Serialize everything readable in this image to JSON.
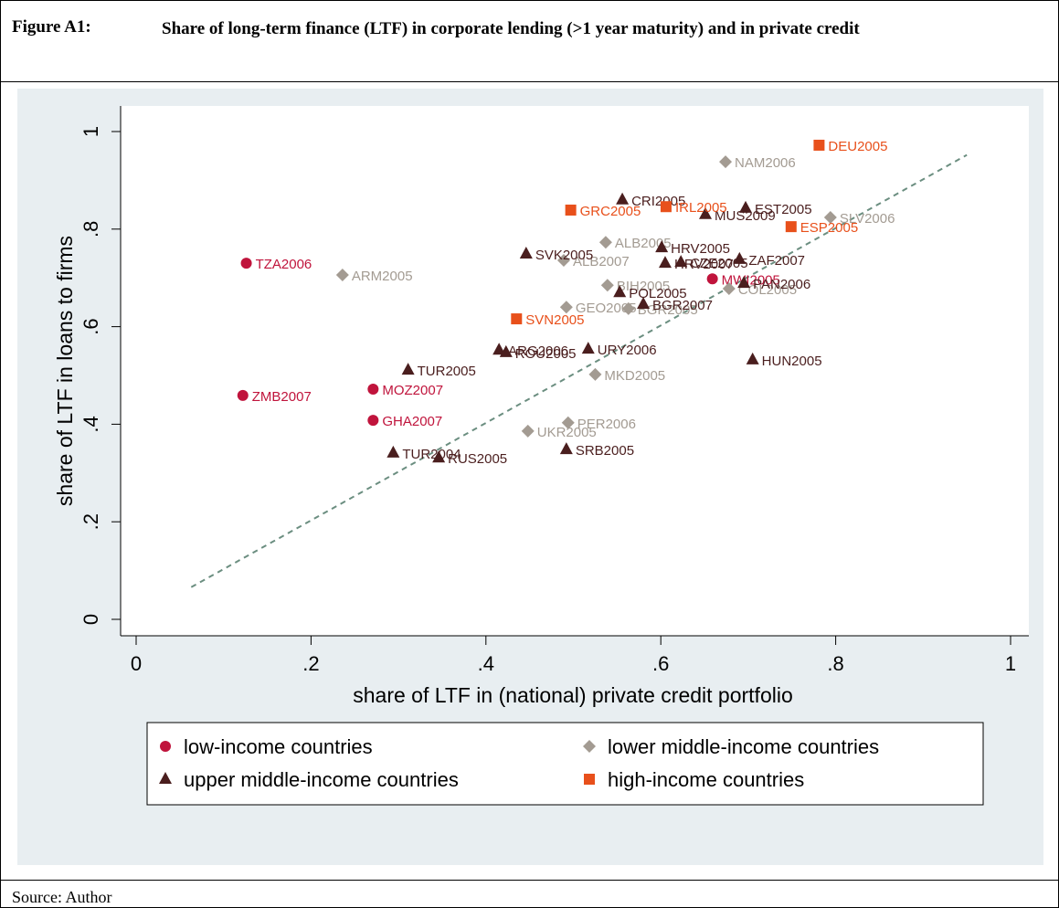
{
  "figure_label": "Figure A1:",
  "footer": "Source: Author",
  "chart_data": {
    "type": "scatter",
    "title": "Share of long-term finance (LTF) in corporate lending (>1 year maturity) and in private credit",
    "x_label": "share of LTF in (national) private credit portfolio",
    "y_label": "share of LTF in loans to firms",
    "xlim": [
      0,
      1
    ],
    "ylim": [
      0,
      1
    ],
    "xticks": [
      0,
      {
        "value": 0.2,
        "label": ".2"
      },
      {
        "value": 0.4,
        "label": ".4"
      },
      {
        "value": 0.6,
        "label": ".6"
      },
      {
        "value": 0.8,
        "label": ".8"
      },
      1
    ],
    "yticks": [
      0,
      {
        "value": 0.2,
        "label": ".2"
      },
      {
        "value": 0.4,
        "label": ".4"
      },
      {
        "value": 0.6,
        "label": ".6"
      },
      {
        "value": 0.8,
        "label": ".8"
      },
      1
    ],
    "reference_line": {
      "x": [
        0.063,
        0.95
      ],
      "y": [
        0.066,
        0.952
      ],
      "color": "#6b8e80"
    },
    "series": [
      {
        "name": "low-income countries",
        "color": "#c0143c",
        "marker": "circle",
        "labels": [
          "TZA2006",
          "ZMB2007",
          "MOZ2007",
          "GHA2007",
          "MWI2005"
        ],
        "x": [
          0.126,
          0.122,
          0.271,
          0.271,
          0.659
        ],
        "y": [
          0.73,
          0.459,
          0.472,
          0.408,
          0.698
        ]
      },
      {
        "name": "lower middle-income countries",
        "color": "#a39b92",
        "marker": "diamond",
        "labels": [
          "NAM2006",
          "ARM2005",
          "ALB2005",
          "ALB2007",
          "BIH2005",
          "GEO2005",
          "BGR2005",
          "COL2005",
          "SLV2006",
          "MKD2005",
          "PER2006",
          "UKR2005"
        ],
        "x": [
          0.674,
          0.236,
          0.537,
          0.489,
          0.539,
          0.492,
          0.563,
          0.678,
          0.794,
          0.525,
          0.494,
          0.448
        ],
        "y": [
          0.938,
          0.706,
          0.773,
          0.736,
          0.685,
          0.64,
          0.637,
          0.678,
          0.824,
          0.502,
          0.403,
          0.386
        ]
      },
      {
        "name": "upper middle-income countries",
        "color": "#4a1e1e",
        "marker": "triangle",
        "labels": [
          "CRI2005",
          "EST2005",
          "MUS2009",
          "SVK2005",
          "HRV2005",
          "ZAF2007",
          "HRV2007",
          "CZE2005",
          "POL2005",
          "BGR2007",
          "PAN2006",
          "ARG2006",
          "ROU2005",
          "URY2006",
          "HUN2005",
          "TUR2005",
          "TUR2004",
          "RUS2005",
          "SRB2005"
        ],
        "x": [
          0.556,
          0.697,
          0.651,
          0.446,
          0.601,
          0.69,
          0.605,
          0.623,
          0.553,
          0.58,
          0.695,
          0.415,
          0.423,
          0.517,
          0.705,
          0.311,
          0.294,
          0.346,
          0.492
        ],
        "y": [
          0.86,
          0.843,
          0.83,
          0.749,
          0.762,
          0.738,
          0.73,
          0.732,
          0.67,
          0.646,
          0.689,
          0.552,
          0.547,
          0.554,
          0.532,
          0.511,
          0.341,
          0.331,
          0.348
        ]
      },
      {
        "name": "high-income countries",
        "color": "#e8501b",
        "marker": "square",
        "labels": [
          "DEU2005",
          "GRC2005",
          "IRL2005",
          "ESP2005",
          "SVN2005"
        ],
        "x": [
          0.781,
          0.497,
          0.606,
          0.749,
          0.435
        ],
        "y": [
          0.972,
          0.839,
          0.846,
          0.805,
          0.616
        ]
      }
    ]
  }
}
